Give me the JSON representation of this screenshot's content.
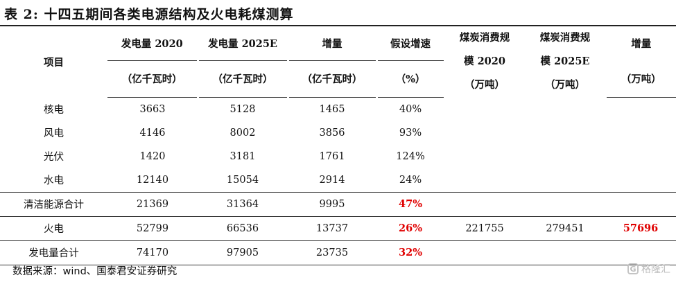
{
  "title": "表 2: 十四五期间各类电源结构及火电耗煤测算",
  "headers": {
    "item": "项目",
    "gen2020": "发电量 2020",
    "gen2025": "发电量 2025E",
    "increase": "增量",
    "growth": "假设增速",
    "coal2020_line1": "煤炭消费规",
    "coal2020_line2": "模 2020",
    "coal2020_unit": "（万吨）",
    "coal2025_line1": "煤炭消费规",
    "coal2025_line2": "模 2025E",
    "coal2025_unit": "（万吨）",
    "coal_increase": "增量",
    "coal_increase_unit": "（万吨）",
    "unit_kwh_1": "（亿千瓦时）",
    "unit_kwh_2": "（亿千瓦时）",
    "unit_kwh_3": "（亿千瓦时）",
    "unit_pct": "（%）"
  },
  "rows": [
    {
      "label": "核电",
      "gen2020": "3663",
      "gen2025": "5128",
      "inc": "1465",
      "growth": "40%",
      "coal2020": "",
      "coal2025": "",
      "coal_inc": ""
    },
    {
      "label": "风电",
      "gen2020": "4146",
      "gen2025": "8002",
      "inc": "3856",
      "growth": "93%",
      "coal2020": "",
      "coal2025": "",
      "coal_inc": ""
    },
    {
      "label": "光伏",
      "gen2020": "1420",
      "gen2025": "3181",
      "inc": "1761",
      "growth": "124%",
      "coal2020": "",
      "coal2025": "",
      "coal_inc": ""
    },
    {
      "label": "水电",
      "gen2020": "12140",
      "gen2025": "15054",
      "inc": "2914",
      "growth": "24%",
      "coal2020": "",
      "coal2025": "",
      "coal_inc": ""
    },
    {
      "label": "清洁能源合计",
      "gen2020": "21369",
      "gen2025": "31364",
      "inc": "9995",
      "growth": "47%",
      "coal2020": "",
      "coal2025": "",
      "coal_inc": ""
    },
    {
      "label": "火电",
      "gen2020": "52799",
      "gen2025": "66536",
      "inc": "13737",
      "growth": "26%",
      "coal2020": "221755",
      "coal2025": "279451",
      "coal_inc": "57696"
    },
    {
      "label": "发电量合计",
      "gen2020": "74170",
      "gen2025": "97905",
      "inc": "23735",
      "growth": "32%",
      "coal2020": "",
      "coal2025": "",
      "coal_inc": ""
    }
  ],
  "colors": {
    "highlight": "#e00000"
  },
  "source": "数据来源：wind、国泰君安证券研究",
  "watermark": {
    "icon": "gelonghui-logo-icon",
    "text": "格隆汇"
  }
}
